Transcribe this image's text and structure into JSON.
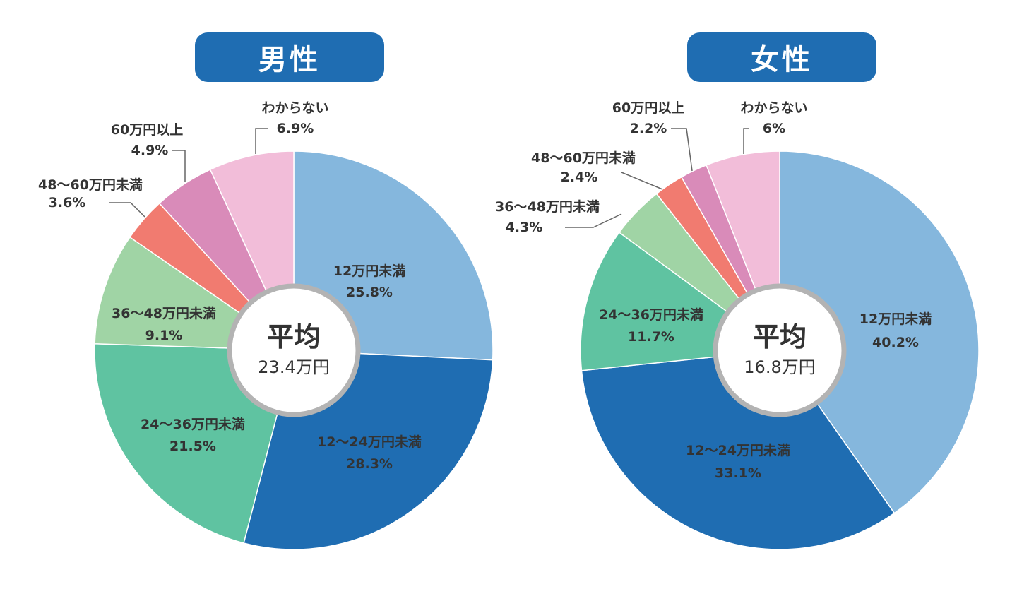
{
  "chart_data": [
    {
      "type": "pie",
      "title": "男性",
      "center_label": "平均",
      "center_value": "23.4万円",
      "start": "top, clockwise",
      "slices": [
        {
          "label": "12万円未満",
          "value": 25.8,
          "text": "25.8%",
          "color": "#85b7dd"
        },
        {
          "label": "12～24万円未満",
          "value": 28.3,
          "text": "28.3%",
          "color": "#1f6db2"
        },
        {
          "label": "24～36万円未満",
          "value": 21.5,
          "text": "21.5%",
          "color": "#5fc3a1"
        },
        {
          "label": "36～48万円未満",
          "value": 9.1,
          "text": "9.1%",
          "color": "#a0d4a5"
        },
        {
          "label": "48～60万円未満",
          "value": 3.6,
          "text": "3.6%",
          "color": "#f17b70"
        },
        {
          "label": "60万円以上",
          "value": 4.9,
          "text": "4.9%",
          "color": "#d98bb9"
        },
        {
          "label": "わからない",
          "value": 6.9,
          "text": "6.9%",
          "color": "#f2bdd9"
        }
      ]
    },
    {
      "type": "pie",
      "title": "女性",
      "center_label": "平均",
      "center_value": "16.8万円",
      "start": "top, clockwise",
      "slices": [
        {
          "label": "12万円未満",
          "value": 40.2,
          "text": "40.2%",
          "color": "#85b7dd"
        },
        {
          "label": "12～24万円未満",
          "value": 33.1,
          "text": "33.1%",
          "color": "#1f6db2"
        },
        {
          "label": "24～36万円未満",
          "value": 11.7,
          "text": "11.7%",
          "color": "#5fc3a1"
        },
        {
          "label": "36～48万円未満",
          "value": 4.3,
          "text": "4.3%",
          "color": "#a0d4a5"
        },
        {
          "label": "48～60万円未満",
          "value": 2.4,
          "text": "2.4%",
          "color": "#f17b70"
        },
        {
          "label": "60万円以上",
          "value": 2.2,
          "text": "2.2%",
          "color": "#d98bb9"
        },
        {
          "label": "わからない",
          "value": 6,
          "text": "6%",
          "color": "#f2bdd9"
        }
      ]
    }
  ]
}
